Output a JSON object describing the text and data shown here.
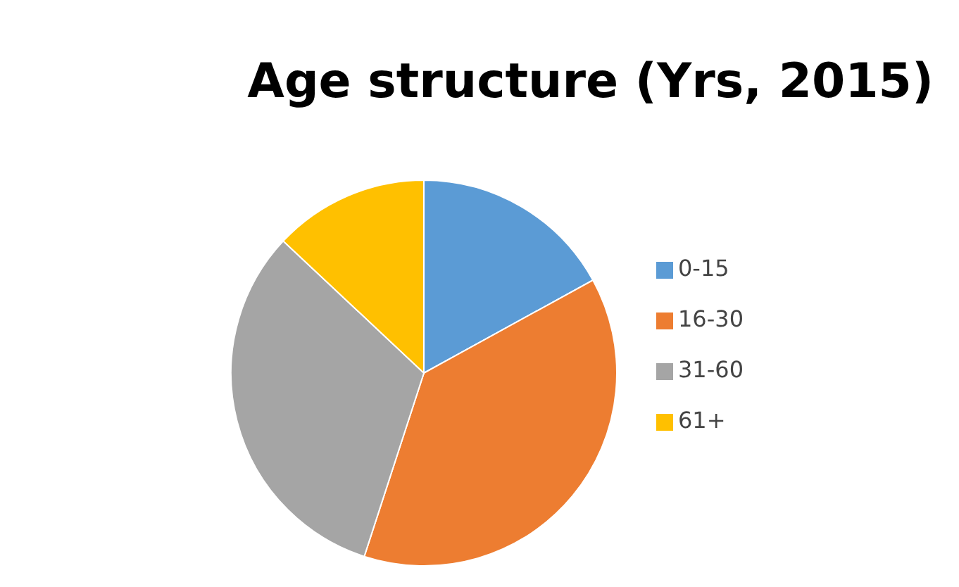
{
  "chart_data": {
    "type": "pie",
    "title": "Age structure (Yrs, 2015)",
    "categories": [
      "0-15",
      "16-30",
      "31-60",
      "61+"
    ],
    "values": [
      17,
      38,
      32,
      13
    ],
    "colors": [
      "#5b9bd5",
      "#ed7d31",
      "#a5a5a5",
      "#ffc000"
    ],
    "legend": "right"
  }
}
